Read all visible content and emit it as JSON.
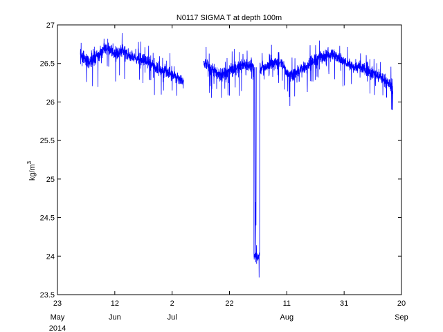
{
  "chart_data": {
    "type": "line",
    "title": "N0117 SIGMA T at depth 100m",
    "ylabel": "kg/m",
    "ylabel_sup": "3",
    "ylim": [
      23.5,
      27
    ],
    "xlim": [
      "2014-05-23",
      "2014-09-20"
    ],
    "x_tick_days": [
      "23",
      "12",
      "2",
      "22",
      "11",
      "31",
      "20"
    ],
    "x_tick_dates": [
      "2014-05-23",
      "2014-06-12",
      "2014-07-02",
      "2014-07-22",
      "2014-08-11",
      "2014-08-31",
      "2014-09-20"
    ],
    "x_month_labels": [
      "May",
      "Jun",
      "Jul",
      "Aug",
      "Sep"
    ],
    "x_month_dates": [
      "2014-05-23",
      "2014-06-12",
      "2014-07-02",
      "2014-08-11",
      "2014-09-20"
    ],
    "x_year_label": "2014",
    "y_ticks": [
      "23.5",
      "24",
      "24.5",
      "25",
      "25.5",
      "26",
      "26.5",
      "27"
    ],
    "grid": false,
    "color": "#0000ff",
    "series": [
      {
        "segments": [
          {
            "x": [
              "2014-05-31",
              "2014-06-03",
              "2014-06-06",
              "2014-06-09",
              "2014-06-12",
              "2014-06-15",
              "2014-06-18",
              "2014-06-21",
              "2014-06-24",
              "2014-06-27",
              "2014-06-30",
              "2014-07-03",
              "2014-07-06"
            ],
            "y": [
              26.62,
              26.52,
              26.6,
              26.7,
              26.62,
              26.66,
              26.58,
              26.55,
              26.52,
              26.43,
              26.4,
              26.34,
              26.25
            ]
          },
          {
            "x": [
              "2014-07-13",
              "2014-07-16",
              "2014-07-19",
              "2014-07-22",
              "2014-07-25",
              "2014-07-28",
              "2014-07-30",
              "2014-07-31",
              "2014-08-03",
              "2014-08-06",
              "2014-08-09",
              "2014-08-12",
              "2014-08-15",
              "2014-08-18",
              "2014-08-21",
              "2014-08-24",
              "2014-08-27",
              "2014-08-30",
              "2014-09-02",
              "2014-09-05",
              "2014-09-08",
              "2014-09-11",
              "2014-09-14",
              "2014-09-17"
            ],
            "y": [
              26.52,
              26.42,
              26.35,
              26.4,
              26.45,
              26.5,
              26.45,
              24.0,
              26.45,
              26.5,
              26.52,
              26.32,
              26.42,
              26.46,
              26.55,
              26.6,
              26.62,
              26.55,
              26.48,
              26.45,
              26.42,
              26.35,
              26.3,
              26.18
            ]
          }
        ]
      }
    ]
  }
}
